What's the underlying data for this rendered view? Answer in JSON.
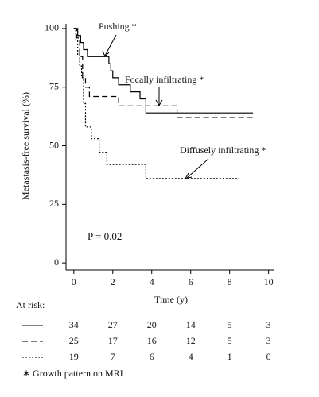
{
  "chart_data": {
    "type": "line",
    "step": "post",
    "ylabel": "Metastasis-free survival (%)",
    "xlabel": "Time (y)",
    "xlim": [
      -0.4,
      10.3
    ],
    "xticks": [
      0,
      2,
      4,
      6,
      8,
      10
    ],
    "ylim": [
      -3,
      102
    ],
    "yticks": [
      0,
      25,
      50,
      75,
      100
    ],
    "series": [
      {
        "name": "Pushing *",
        "color": "#000000",
        "dash": "solid",
        "x": [
          0,
          0.2,
          0.35,
          0.5,
          0.7,
          1.8,
          1.9,
          2.0,
          2.3,
          2.9,
          3.4,
          3.7,
          9.2
        ],
        "values": [
          100,
          97,
          94,
          91,
          88,
          85,
          82,
          79,
          76,
          73,
          70,
          64,
          64
        ]
      },
      {
        "name": "Focally infiltrating *",
        "color": "#000000",
        "dash": "dashed",
        "x": [
          0,
          0.15,
          0.3,
          0.45,
          0.6,
          0.8,
          2.3,
          5.3,
          9.2
        ],
        "values": [
          100,
          96,
          88,
          79,
          75,
          71,
          67,
          62,
          62
        ]
      },
      {
        "name": "Diffusely infiltrating *",
        "color": "#000000",
        "dash": "dotted",
        "x": [
          0,
          0.1,
          0.2,
          0.3,
          0.4,
          0.5,
          0.6,
          0.9,
          1.3,
          1.7,
          3.7,
          8.5
        ],
        "values": [
          100,
          95,
          89,
          84,
          79,
          68,
          58,
          53,
          47,
          42,
          36,
          36
        ]
      }
    ],
    "annotation": "P = 0.02",
    "at_risk": {
      "label": "At risk:",
      "rows": [
        [
          34,
          27,
          20,
          14,
          5,
          3
        ],
        [
          25,
          17,
          16,
          12,
          5,
          3
        ],
        [
          19,
          7,
          6,
          4,
          1,
          0
        ]
      ]
    },
    "footnote": "∗ Growth pattern on MRI"
  }
}
